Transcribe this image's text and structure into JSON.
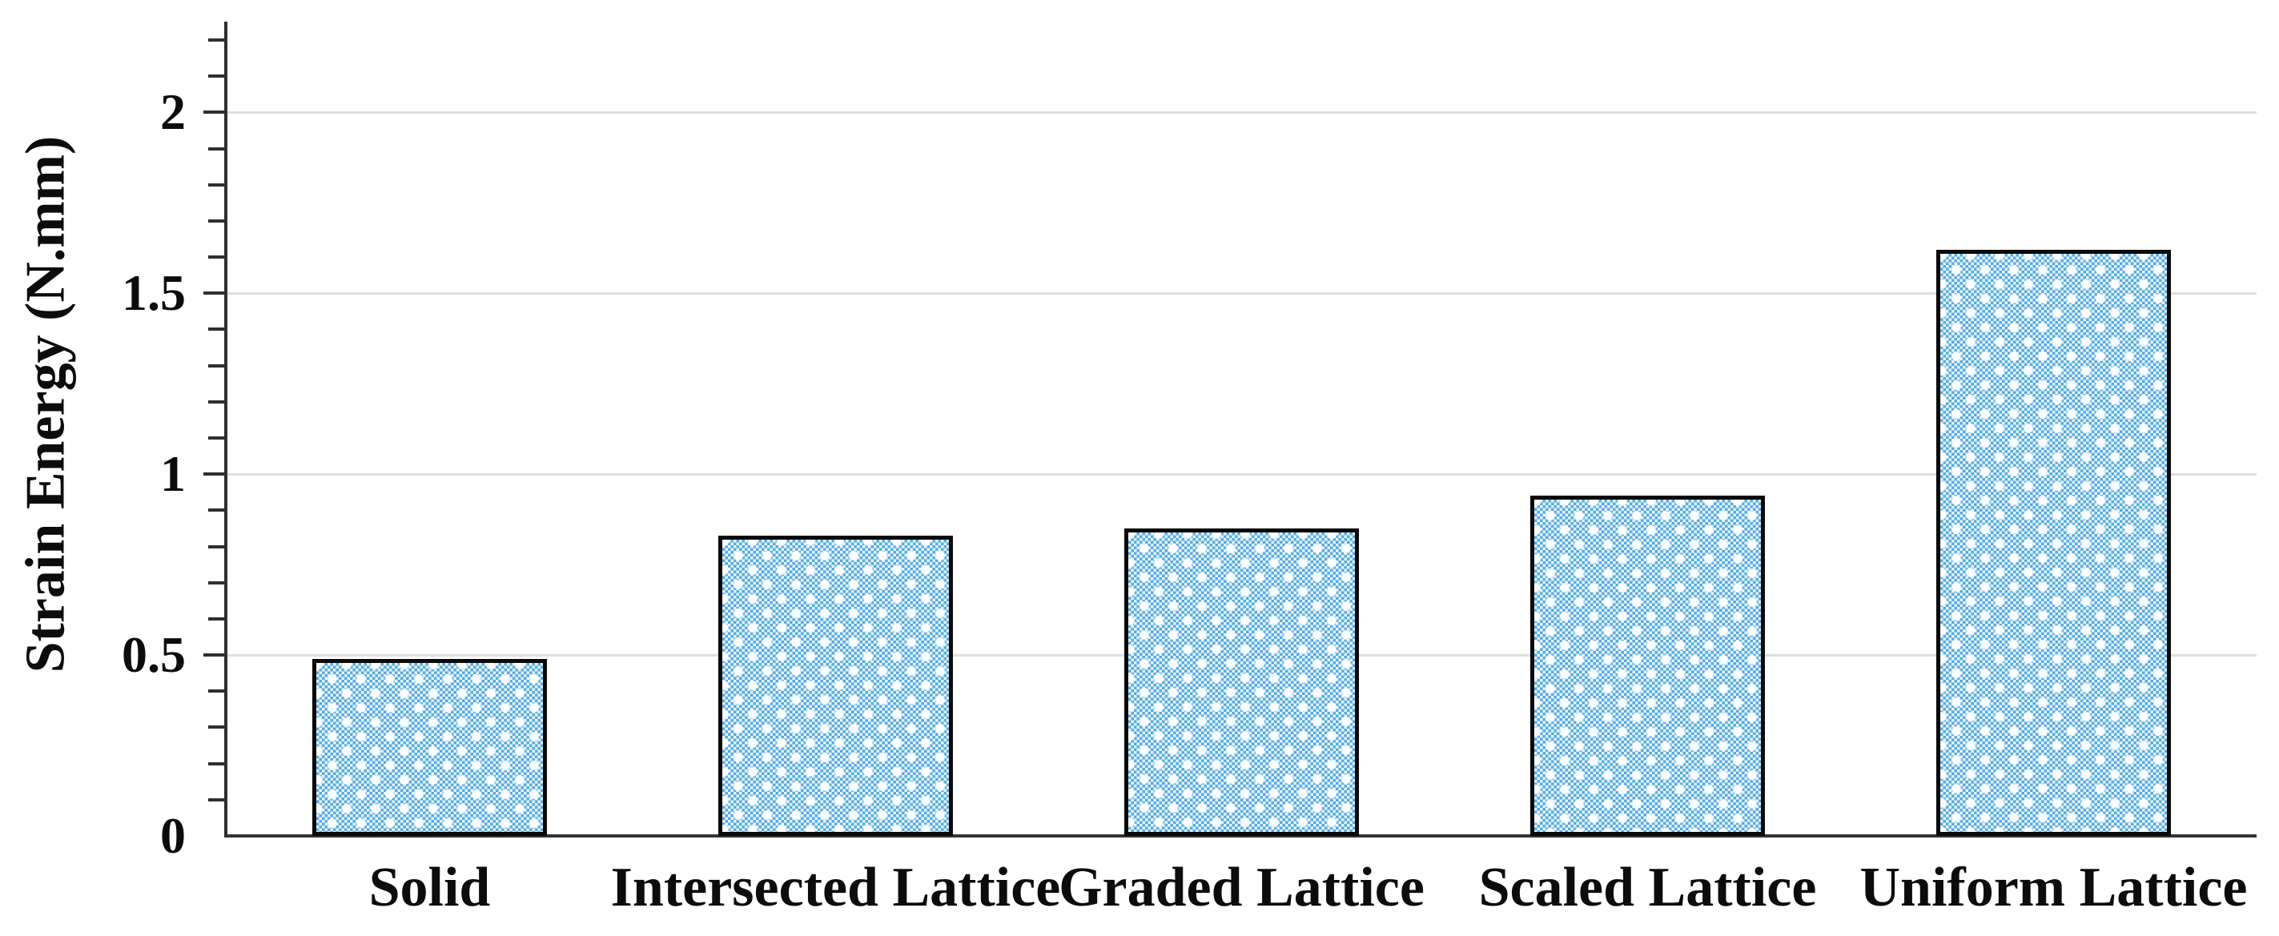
{
  "chart_data": {
    "type": "bar",
    "categories": [
      "Solid",
      "Intersected Lattice",
      "Graded Lattice",
      "Scaled Lattice",
      "Uniform Lattice"
    ],
    "values": [
      0.49,
      0.83,
      0.85,
      0.94,
      1.62
    ],
    "title": "",
    "xlabel": "",
    "ylabel": "Strain Energy (N.mm)",
    "ylim": [
      0,
      2.25
    ],
    "yticks": [
      0,
      0.5,
      1,
      1.5,
      2
    ],
    "ytick_labels": [
      "0",
      "0.5",
      "1",
      "1.5",
      "2"
    ],
    "minor_tick_step": 0.1,
    "minor_tick_max": 2.2,
    "grid": "horizontal-major",
    "legend_position": "none",
    "series_name": "Strain Energy",
    "colors": {
      "bar_fill_base": "#e7f4fb",
      "bar_dot_blue": "#55abdf",
      "bar_border": "#0a0a0a",
      "gridline": "#dedede",
      "axis": "#2f2f2f",
      "text": "#0c0c0c",
      "background": "#ffffff"
    }
  }
}
